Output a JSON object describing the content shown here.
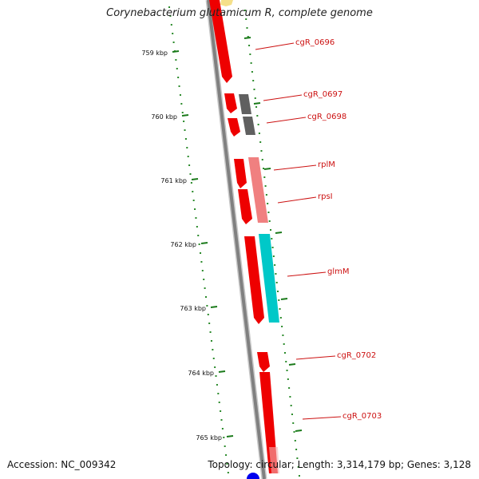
{
  "title": "Corynebacterium glutamicum R, complete genome",
  "footer": {
    "accession": "Accession: NC_009342",
    "summary": "Topology: circular; Length: 3,314,179 bp; Genes: 3,128"
  },
  "colors": {
    "backbone": "#808080",
    "gc_dots": "#2a8a2a",
    "tick": "#1a7a1a",
    "label": "#cc1111",
    "forward_gene": "#ee0000",
    "reverse_grey": "#606060",
    "reverse_pink": "#f08080",
    "reverse_cyan": "#00c8c8",
    "reverse_yellow": "#f5e08a",
    "origin": "#0000ee"
  },
  "ticks": [
    {
      "label": "759 kbp"
    },
    {
      "label": "760 kbp"
    },
    {
      "label": "761 kbp"
    },
    {
      "label": "762 kbp"
    },
    {
      "label": "763 kbp"
    },
    {
      "label": "764 kbp"
    },
    {
      "label": "765 kbp"
    }
  ],
  "gene_labels": [
    {
      "text": "cgR_0696"
    },
    {
      "text": "cgR_0697"
    },
    {
      "text": "cgR_0698"
    },
    {
      "text": "rplM"
    },
    {
      "text": "rpsI"
    },
    {
      "text": "glmM"
    },
    {
      "text": "cgR_0702"
    },
    {
      "text": "cgR_0703"
    }
  ]
}
